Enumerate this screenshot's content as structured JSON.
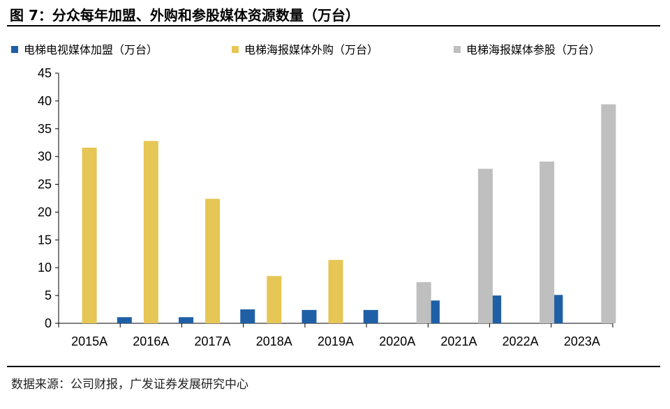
{
  "title": "图 7：分众每年加盟、外购和参股媒体资源数量（万台）",
  "source": "数据来源：公司财报，广发证券发展研究中心",
  "colors": {
    "series_1": "#1f5fa6",
    "series_2": "#e6c654",
    "series_3": "#bfbfbf"
  },
  "chart_data": {
    "type": "bar",
    "categories": [
      "2015A",
      "2016A",
      "2017A",
      "2018A",
      "2019A",
      "2020A",
      "2021A",
      "2022A",
      "2023A"
    ],
    "series": [
      {
        "name": "电梯电视媒体加盟（万台）",
        "values": [
          0,
          1.1,
          1.1,
          2.5,
          2.4,
          2.4,
          4.1,
          5.0,
          5.1
        ]
      },
      {
        "name": "电梯海报媒体外购（万台）",
        "values": [
          31.6,
          32.8,
          22.4,
          8.5,
          11.4,
          0,
          0,
          0,
          0
        ]
      },
      {
        "name": "电梯海报媒体参股（万台）",
        "values": [
          0,
          0,
          0,
          0,
          0,
          7.4,
          27.8,
          29.1,
          39.4
        ]
      }
    ],
    "ylim": [
      0,
      45
    ],
    "yticks": [
      0,
      5,
      10,
      15,
      20,
      25,
      30,
      35,
      40,
      45
    ],
    "grid": false,
    "legend_position": "top"
  }
}
